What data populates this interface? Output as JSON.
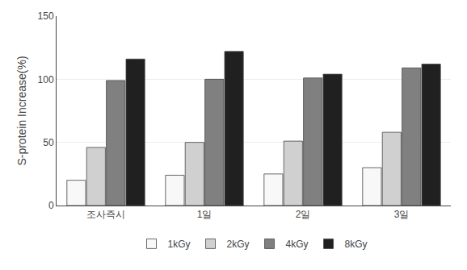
{
  "chart_data": {
    "type": "bar",
    "ylabel": "S-protein Increase(%)",
    "categories": [
      "조사즉시",
      "1일",
      "2일",
      "3일"
    ],
    "series": [
      {
        "name": "1kGy",
        "color": "#f8f8f8",
        "values": [
          20,
          24,
          25,
          30
        ]
      },
      {
        "name": "2kGy",
        "color": "#d0d0d0",
        "values": [
          46,
          50,
          51,
          58
        ]
      },
      {
        "name": "4kGy",
        "color": "#808080",
        "values": [
          99,
          100,
          101,
          109
        ]
      },
      {
        "name": "8kGy",
        "color": "#202020",
        "values": [
          116,
          122,
          104,
          112
        ]
      }
    ],
    "ylim": [
      0,
      150
    ],
    "yticks": [
      0,
      50,
      100,
      150
    ],
    "grid": true,
    "legend": "bottom"
  }
}
